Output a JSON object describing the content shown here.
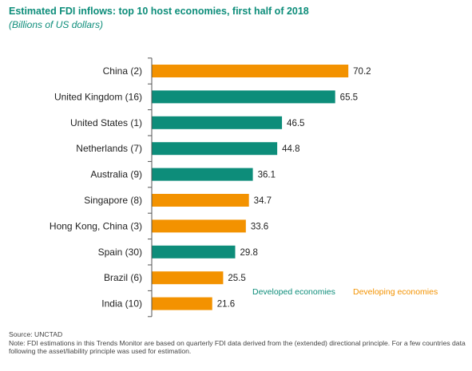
{
  "header": {
    "title": "Estimated FDI inflows: top 10 host economies, first half of 2018",
    "subtitle": "(Billions of US dollars)"
  },
  "colors": {
    "developed": "#0d8d7a",
    "developing": "#f39200",
    "axis": "#555555"
  },
  "chart_data": {
    "type": "bar",
    "orientation": "horizontal",
    "title": "Estimated FDI inflows: top 10 host economies, first half of 2018",
    "subtitle": "(Billions of US dollars)",
    "categories": [
      "China (2)",
      "United Kingdom (16)",
      "United States (1)",
      "Netherlands (7)",
      "Australia (9)",
      "Singapore (8)",
      "Hong Kong, China (3)",
      "Spain (30)",
      "Brazil (6)",
      "India (10)"
    ],
    "values": [
      70.2,
      65.5,
      46.5,
      44.8,
      36.1,
      34.7,
      33.6,
      29.8,
      25.5,
      21.6
    ],
    "value_labels": [
      "70.2",
      "65.5",
      "46.5",
      "44.8",
      "36.1",
      "34.7",
      "33.6",
      "29.8",
      "25.5",
      "21.6"
    ],
    "groups": [
      "developing",
      "developed",
      "developed",
      "developed",
      "developed",
      "developing",
      "developing",
      "developed",
      "developing",
      "developing"
    ],
    "legend": [
      {
        "key": "developed",
        "name": "Developed economies"
      },
      {
        "key": "developing",
        "name": "Developing economies"
      }
    ],
    "legend_position": "bottom-right",
    "xlim": [
      0,
      75
    ],
    "grid": false,
    "xlabel": "",
    "ylabel": ""
  },
  "footer": {
    "source": "Source: UNCTAD",
    "note": "Note: FDI estimations in this Trends Monitor are based on quarterly FDI data derived from the (extended) directional principle. For a few countries data following the asset/liability principle was used for estimation."
  }
}
